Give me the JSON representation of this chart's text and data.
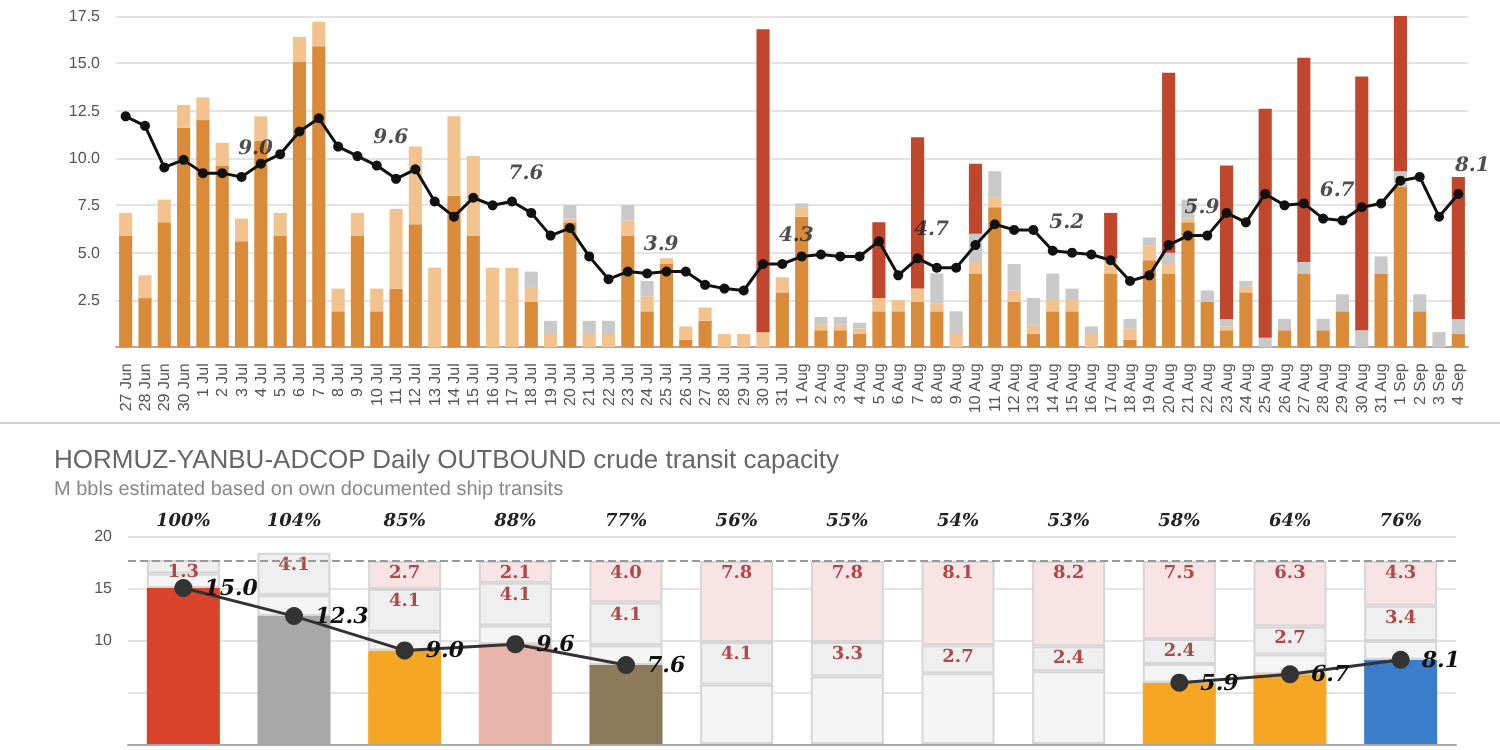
{
  "chart_data": [
    {
      "type": "bar",
      "stacked": true,
      "grid": "y",
      "marker": "circle",
      "line_style": "solid",
      "categories": [
        "27 Jun",
        "28 Jun",
        "29 Jun",
        "30 Jun",
        "1 Jul",
        "2 Jul",
        "3 Jul",
        "4 Jul",
        "5 Jul",
        "6 Jul",
        "7 Jul",
        "8 Jul",
        "9 Jul",
        "10 Jul",
        "11 Jul",
        "12 Jul",
        "13 Jul",
        "14 Jul",
        "15 Jul",
        "16 Jul",
        "17 Jul",
        "18 Jul",
        "19 Jul",
        "20 Jul",
        "21 Jul",
        "22 Jul",
        "23 Jul",
        "24 Jul",
        "25 Jul",
        "26 Jul",
        "27 Jul",
        "28 Jul",
        "29 Jul",
        "30 Jul",
        "31 Jul",
        "1 Aug",
        "2 Aug",
        "3 Aug",
        "4 Aug",
        "5 Aug",
        "6 Aug",
        "7 Aug",
        "8 Aug",
        "9 Aug",
        "10 Aug",
        "11 Aug",
        "12 Aug",
        "13 Aug",
        "14 Aug",
        "15 Aug",
        "16 Aug",
        "17 Aug",
        "18 Aug",
        "19 Aug",
        "20 Aug",
        "21 Aug",
        "22 Aug",
        "23 Aug",
        "24 Aug",
        "25 Aug",
        "26 Aug",
        "27 Aug",
        "28 Aug",
        "29 Aug",
        "30 Aug",
        "31 Aug",
        "1 Sep",
        "2 Sep",
        "3 Sep",
        "4 Sep"
      ],
      "ylim": [
        0,
        17.5
      ],
      "yticks": [
        {
          "value": 2.5,
          "label": "2.5"
        },
        {
          "value": 5,
          "label": "5.0"
        },
        {
          "value": 7.5,
          "label": "7.5"
        },
        {
          "value": 10,
          "label": "10.0"
        },
        {
          "value": 12.5,
          "label": "12.5"
        },
        {
          "value": 15,
          "label": "15.0"
        },
        {
          "value": 17.5,
          "label": "17.5"
        }
      ],
      "series": [
        {
          "color": "#d98b3a",
          "values": [
            5.9,
            2.6,
            6.6,
            11.6,
            12.0,
            9.6,
            5.6,
            10.9,
            5.9,
            15.1,
            15.9,
            1.9,
            5.9,
            1.9,
            3.1,
            6.5,
            null,
            8.0,
            5.9,
            null,
            null,
            2.4,
            null,
            6.6,
            null,
            null,
            5.9,
            1.9,
            4.4,
            0.4,
            1.4,
            null,
            null,
            null,
            2.9,
            6.9,
            0.9,
            0.9,
            0.7,
            1.9,
            1.9,
            2.4,
            1.9,
            null,
            3.9,
            7.4,
            2.4,
            0.7,
            1.9,
            1.9,
            null,
            3.9,
            0.4,
            4.6,
            3.9,
            6.6,
            2.4,
            0.9,
            2.9,
            null,
            0.9,
            3.9,
            0.9,
            1.9,
            null,
            3.9,
            8.5,
            1.9,
            null,
            0.7
          ]
        },
        {
          "color": "#f2c38e",
          "values": [
            1.2,
            1.2,
            1.2,
            1.2,
            1.2,
            1.2,
            1.2,
            1.3,
            1.2,
            1.3,
            1.3,
            1.2,
            1.2,
            1.2,
            4.2,
            4.1,
            4.2,
            4.2,
            4.2,
            4.2,
            4.2,
            0.8,
            0.7,
            0.2,
            0.7,
            0.7,
            0.8,
            0.8,
            0.3,
            0.7,
            0.7,
            0.7,
            0.7,
            0.8,
            0.8,
            0.5,
            0.3,
            0.3,
            0.3,
            0.7,
            0.6,
            0.7,
            0.4,
            0.7,
            0.6,
            0.5,
            0.6,
            0.5,
            0.6,
            0.6,
            0.7,
            0.8,
            0.6,
            0.8,
            0.5,
            0.2,
            null,
            0.2,
            0.3,
            null,
            null,
            null,
            null,
            null,
            null,
            null,
            null,
            null,
            null,
            null
          ]
        },
        {
          "color": "#c9c9c9",
          "values": [
            null,
            null,
            null,
            null,
            null,
            null,
            null,
            null,
            null,
            null,
            null,
            null,
            null,
            null,
            null,
            null,
            null,
            null,
            null,
            null,
            null,
            0.8,
            0.7,
            0.7,
            0.7,
            0.7,
            0.8,
            0.8,
            null,
            null,
            null,
            null,
            null,
            null,
            null,
            0.2,
            0.4,
            0.4,
            0.3,
            null,
            null,
            null,
            1.6,
            1.2,
            1.5,
            1.4,
            1.4,
            1.4,
            1.4,
            0.6,
            0.4,
            null,
            0.5,
            0.4,
            0.6,
            1.0,
            0.6,
            0.4,
            0.3,
            0.5,
            0.6,
            0.6,
            0.6,
            0.9,
            0.9,
            0.9,
            0.8,
            0.9,
            0.8,
            0.8
          ]
        },
        {
          "color": "#c0472c",
          "values": [
            null,
            null,
            null,
            null,
            null,
            null,
            null,
            null,
            null,
            null,
            null,
            null,
            null,
            null,
            null,
            null,
            null,
            null,
            null,
            null,
            null,
            null,
            null,
            null,
            null,
            null,
            null,
            null,
            null,
            null,
            null,
            null,
            null,
            16.0,
            null,
            null,
            null,
            null,
            null,
            4.0,
            null,
            8.0,
            null,
            null,
            3.7,
            null,
            null,
            null,
            null,
            null,
            null,
            2.4,
            null,
            null,
            9.5,
            null,
            null,
            8.1,
            null,
            12.1,
            null,
            10.8,
            null,
            null,
            13.4,
            null,
            8.2,
            null,
            null,
            7.5
          ]
        },
        {
          "type": "line",
          "color": "#111111",
          "values": [
            12.2,
            11.7,
            9.5,
            9.9,
            9.2,
            9.2,
            9.0,
            9.7,
            10.2,
            11.4,
            12.1,
            10.6,
            10.1,
            9.6,
            8.9,
            9.4,
            7.7,
            6.9,
            7.9,
            7.5,
            7.7,
            7.1,
            5.9,
            6.3,
            4.8,
            3.6,
            4.0,
            3.9,
            4.0,
            4.0,
            3.3,
            3.1,
            3.0,
            4.4,
            4.4,
            4.8,
            4.9,
            4.8,
            4.8,
            5.6,
            3.8,
            4.7,
            4.2,
            4.2,
            5.4,
            6.5,
            6.2,
            6.2,
            5.1,
            5.0,
            4.9,
            4.6,
            3.5,
            3.8,
            5.4,
            5.9,
            5.9,
            7.1,
            6.6,
            8.1,
            7.5,
            7.6,
            6.8,
            6.7,
            7.4,
            7.6,
            8.8,
            9.0,
            6.9,
            8.1
          ]
        }
      ],
      "annotations": [
        {
          "text": "9.0",
          "x": "3 Jul",
          "y": 9.0
        },
        {
          "text": "9.6",
          "x": "10 Jul",
          "y": 9.6
        },
        {
          "text": "7.6",
          "x": "17 Jul",
          "y": 7.7
        },
        {
          "text": "3.9",
          "x": "24 Jul",
          "y": 3.9
        },
        {
          "text": "4.3",
          "x": "31 Jul",
          "y": 4.4
        },
        {
          "text": "4.7",
          "x": "7 Aug",
          "y": 4.7
        },
        {
          "text": "5.2",
          "x": "14 Aug",
          "y": 5.1
        },
        {
          "text": "5.9",
          "x": "21 Aug",
          "y": 5.9
        },
        {
          "text": "6.7",
          "x": "28 Aug",
          "y": 6.8
        },
        {
          "text": "8.1",
          "x": "4 Sep",
          "y": 8.1
        }
      ]
    },
    {
      "type": "bar",
      "stacked": true,
      "grid": "y",
      "marker": "circle",
      "line_style": "solid",
      "tick_labels": "y",
      "title": "HORMUZ-YANBU-ADCOP Daily OUTBOUND crude transit capacity",
      "subtitle": "M bbls estimated based on own documented ship transits",
      "categories": [
        null,
        null,
        null,
        null,
        null,
        null,
        null,
        null,
        null,
        null,
        null,
        null
      ],
      "ylim": [
        0,
        20
      ],
      "yticks": [
        10,
        15,
        20
      ],
      "annotations": [
        "100%",
        "104%",
        "85%",
        "88%",
        "77%",
        "56%",
        "55%",
        "54%",
        "53%",
        "58%",
        "64%",
        "76%"
      ],
      "series": [
        {
          "colors": [
            "#d9432b",
            "#a8a8a8",
            "#f5a623",
            "#e8b4aa",
            "#8c7a5a",
            "#f5a623",
            "#f5a623",
            "#f5a623",
            "#f5a623",
            "#f5a623",
            "#f5a623",
            "#3a7dc9"
          ],
          "values": [
            15.0,
            12.3,
            9.0,
            9.6,
            7.6,
            null,
            null,
            null,
            null,
            5.9,
            6.7,
            8.1
          ]
        },
        {
          "color": "#f5f5f5",
          "values": [
            1.4,
            2.0,
            1.8,
            1.8,
            1.9,
            5.7,
            6.5,
            6.8,
            7.0,
            1.8,
            1.9,
            1.8
          ]
        },
        {
          "color": "#efefef",
          "values": [
            1.3,
            4.1,
            4.1,
            4.1,
            4.1,
            4.1,
            3.3,
            2.7,
            2.4,
            2.4,
            2.7,
            3.4
          ],
          "value_labels": [
            "1.3",
            "4.1",
            "4.1",
            "4.1",
            "4.1",
            "4.1",
            "3.3",
            "2.7",
            "2.4",
            "2.4",
            "2.7",
            "3.4"
          ]
        },
        {
          "color": "#f8e4e4",
          "values": [
            null,
            null,
            2.7,
            2.1,
            4.0,
            7.8,
            7.8,
            8.1,
            8.2,
            7.5,
            6.3,
            4.3
          ],
          "value_labels": [
            null,
            null,
            "2.7",
            "2.1",
            "4.0",
            "7.8",
            "7.8",
            "8.1",
            "8.2",
            "7.5",
            "6.3",
            "4.3"
          ]
        },
        {
          "type": "line",
          "color": "#333333",
          "values": [
            15.0,
            12.3,
            9.0,
            9.6,
            7.6,
            null,
            null,
            null,
            null,
            5.9,
            6.7,
            8.1
          ],
          "value_labels": [
            "15.0",
            "12.3",
            "9.0",
            "9.6",
            "7.6",
            null,
            null,
            null,
            null,
            "5.9",
            "6.7",
            "8.1"
          ]
        }
      ],
      "ref_lines": [
        {
          "axis": "y",
          "value": 17.6,
          "color": "#999999",
          "line_style": "dashed"
        }
      ]
    }
  ]
}
